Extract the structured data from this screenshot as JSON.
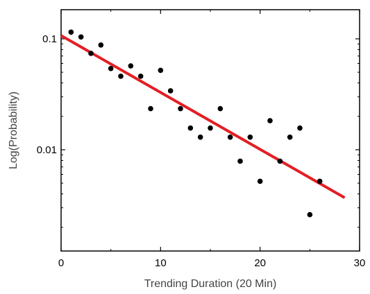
{
  "chart_data": {
    "type": "scatter",
    "xlabel": "Trending Duration (20 Min)",
    "ylabel": "Log(Probability)",
    "x_scale": "linear",
    "y_scale": "log",
    "xlim": [
      0,
      30
    ],
    "ylim": [
      0.0016,
      0.2
    ],
    "x_ticks": [
      0,
      10,
      20,
      30
    ],
    "x_tick_labels": [
      "0",
      "10",
      "20",
      "30"
    ],
    "y_ticks": [
      0.01,
      0.1
    ],
    "y_tick_labels": [
      "0.01",
      "0.1"
    ],
    "grid": false,
    "legend": "none",
    "series": [
      {
        "kind": "scatter",
        "color": "#000000",
        "points": [
          {
            "x": 1,
            "y": 0.115
          },
          {
            "x": 2,
            "y": 0.104
          },
          {
            "x": 3,
            "y": 0.074
          },
          {
            "x": 4,
            "y": 0.088
          },
          {
            "x": 5,
            "y": 0.054
          },
          {
            "x": 6,
            "y": 0.046
          },
          {
            "x": 7,
            "y": 0.057
          },
          {
            "x": 8,
            "y": 0.046
          },
          {
            "x": 9,
            "y": 0.0235
          },
          {
            "x": 10,
            "y": 0.052
          },
          {
            "x": 11,
            "y": 0.034
          },
          {
            "x": 12,
            "y": 0.0235
          },
          {
            "x": 13,
            "y": 0.0157
          },
          {
            "x": 14,
            "y": 0.013
          },
          {
            "x": 15,
            "y": 0.0157
          },
          {
            "x": 16,
            "y": 0.0235
          },
          {
            "x": 17,
            "y": 0.013
          },
          {
            "x": 18,
            "y": 0.0079
          },
          {
            "x": 19,
            "y": 0.013
          },
          {
            "x": 20,
            "y": 0.0052
          },
          {
            "x": 21,
            "y": 0.0183
          },
          {
            "x": 22,
            "y": 0.0079
          },
          {
            "x": 23,
            "y": 0.013
          },
          {
            "x": 24,
            "y": 0.0157
          },
          {
            "x": 25,
            "y": 0.0026
          },
          {
            "x": 26,
            "y": 0.0052
          }
        ]
      },
      {
        "kind": "line",
        "fit": "exponential",
        "color": "#e31e24",
        "points": [
          {
            "x": 0,
            "y": 0.107
          },
          {
            "x": 28.5,
            "y": 0.0037
          }
        ]
      }
    ]
  }
}
